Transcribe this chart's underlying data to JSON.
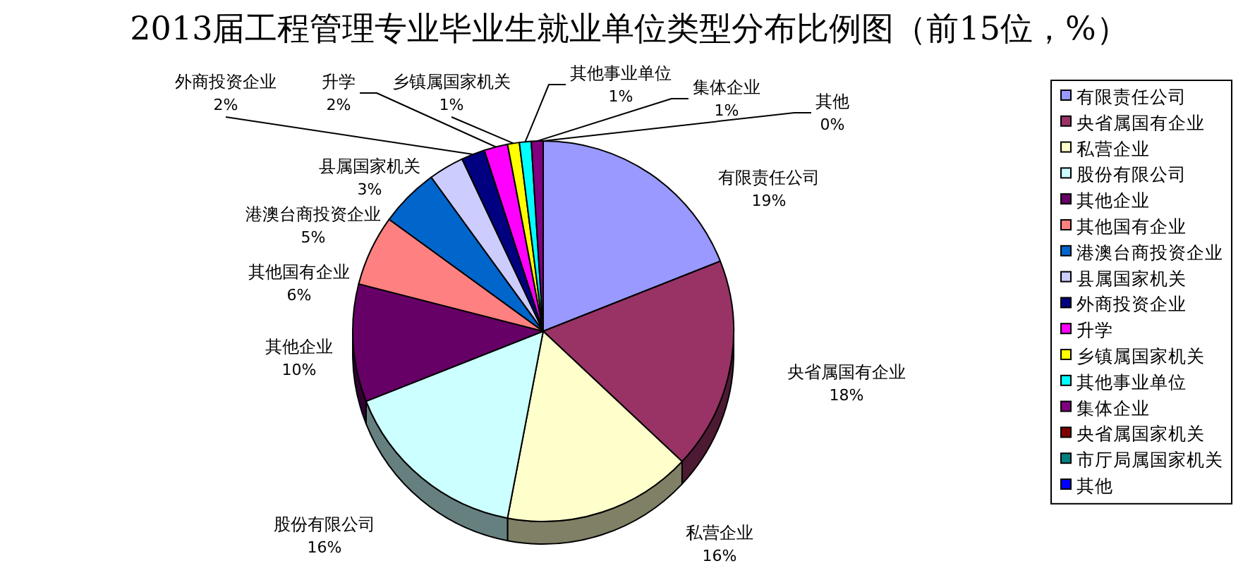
{
  "chart_data": {
    "type": "pie",
    "title": "2013届工程管理专业毕业生就业单位类型分布比例图（前15位，%）",
    "categories": [
      "有限责任公司",
      "央省属国有企业",
      "私营企业",
      "股份有限公司",
      "其他企业",
      "其他国有企业",
      "港澳台商投资企业",
      "县属国家机关",
      "外商投资企业",
      "升学",
      "乡镇属国家机关",
      "其他事业单位",
      "集体企业",
      "央省属国家机关",
      "市厅局属国家机关",
      "其他"
    ],
    "values": [
      19,
      18,
      16,
      16,
      10,
      6,
      5,
      3,
      2,
      2,
      1,
      1,
      1,
      0,
      0,
      0
    ],
    "colors": [
      "#9999ff",
      "#993366",
      "#ffffcc",
      "#ccffff",
      "#660066",
      "#ff8080",
      "#0066cc",
      "#ccccff",
      "#000080",
      "#ff00ff",
      "#ffff00",
      "#00ffff",
      "#800080",
      "#800000",
      "#008080",
      "#0000ff"
    ],
    "value_labels": [
      "19%",
      "18%",
      "16%",
      "16%",
      "10%",
      "6%",
      "5%",
      "3%",
      "2%",
      "2%",
      "1%",
      "1%",
      "1%",
      null,
      null,
      "0%"
    ],
    "legend": "right"
  }
}
